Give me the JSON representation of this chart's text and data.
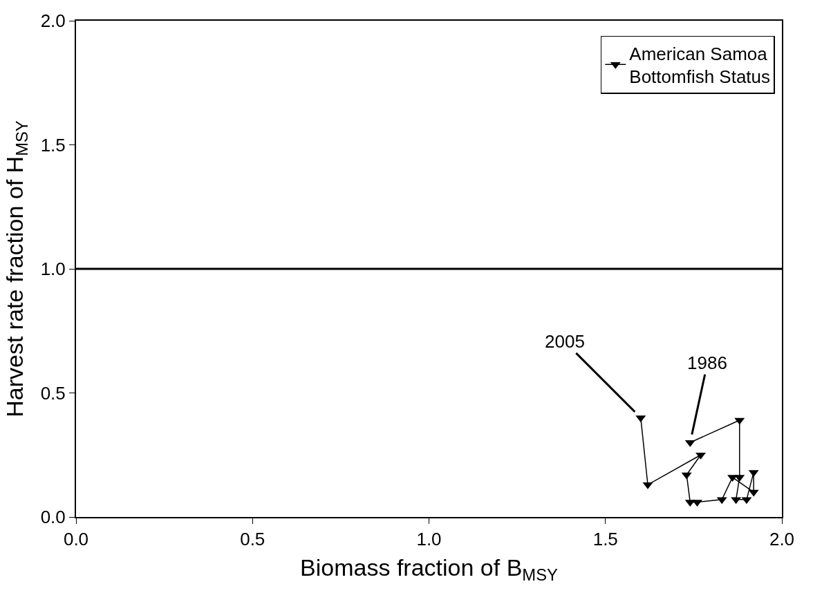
{
  "chart_data": {
    "type": "line",
    "xlabel": "Biomass fraction of B$_{MSY}$",
    "ylabel": "Harvest rate fraction of H$_{MSY}$",
    "x": [
      1.74,
      1.88,
      1.88,
      1.87,
      1.9,
      1.92,
      1.92,
      1.86,
      1.83,
      1.76,
      1.74,
      1.73,
      1.77,
      1.62,
      1.6
    ],
    "series": [
      {
        "name": "American Samoa\nBottomfish Status",
        "color": "#000000",
        "values": [
          0.3,
          0.39,
          0.16,
          0.07,
          0.07,
          0.18,
          0.1,
          0.16,
          0.07,
          0.06,
          0.06,
          0.17,
          0.25,
          0.13,
          0.4
        ]
      }
    ],
    "marker": "triangle",
    "line_style": "solid",
    "xlim": [
      0,
      2
    ],
    "ylim": [
      0,
      2
    ],
    "xticks": [
      {
        "value": 0,
        "label": "0.0"
      },
      {
        "value": 0.5,
        "label": "0.5"
      },
      {
        "value": 1,
        "label": "1.0"
      },
      {
        "value": 1.5,
        "label": "1.5"
      },
      {
        "value": 2,
        "label": "2.0"
      }
    ],
    "yticks": [
      {
        "value": 0,
        "label": "0.0"
      },
      {
        "value": 0.5,
        "label": "0.5"
      },
      {
        "value": 1,
        "label": "1.0"
      },
      {
        "value": 1.5,
        "label": "1.5"
      },
      {
        "value": 2,
        "label": "2.0"
      }
    ],
    "ref_lines": [
      {
        "axis": "y",
        "value": 1.0,
        "color": "#000000"
      }
    ],
    "annotations": [
      {
        "text": "2005",
        "x": 1.6,
        "y": 0.4
      },
      {
        "text": "1986",
        "x": 1.74,
        "y": 0.3
      }
    ],
    "legend": "top right"
  }
}
